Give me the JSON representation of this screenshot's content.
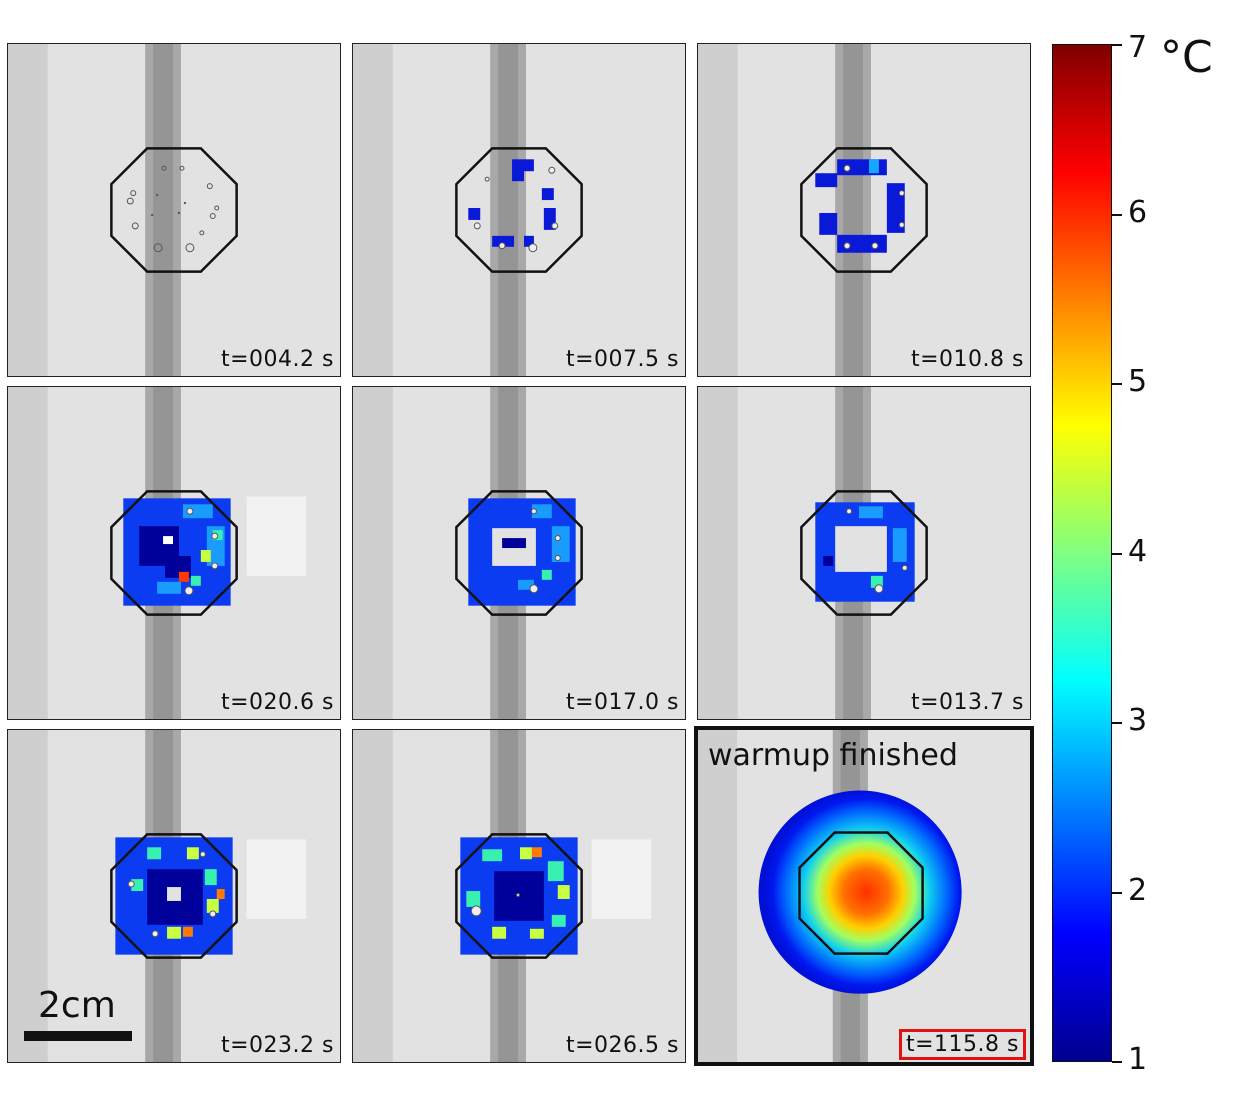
{
  "panels": [
    {
      "time": "t=004.2 s"
    },
    {
      "time": "t=007.5 s"
    },
    {
      "time": "t=010.8 s"
    },
    {
      "time": "t=020.6 s"
    },
    {
      "time": "t=017.0 s"
    },
    {
      "time": "t=013.7 s"
    },
    {
      "time": "t=023.2 s"
    },
    {
      "time": "t=026.5 s"
    },
    {
      "time": "t=115.8 s",
      "title": "warmup finished"
    }
  ],
  "scale_bar": {
    "label": "2cm"
  },
  "colorbar": {
    "unit": "°C",
    "ticks": [
      "1",
      "2",
      "3",
      "4",
      "5",
      "6",
      "7"
    ],
    "min": 1,
    "max": 7,
    "colors": [
      "#00008f",
      "#0000ff",
      "#0080ff",
      "#00ffff",
      "#80ff80",
      "#ffff00",
      "#ff8000",
      "#ff0000",
      "#800000"
    ]
  }
}
